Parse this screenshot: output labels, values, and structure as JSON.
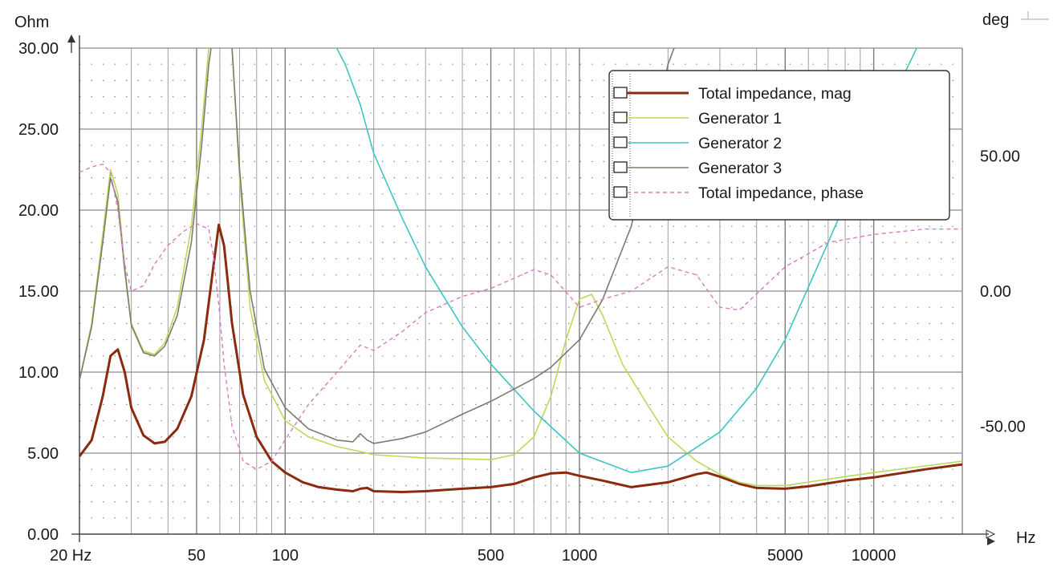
{
  "chart_data": {
    "type": "line",
    "x_scale": "log",
    "xlim": [
      20,
      20000
    ],
    "ylim_left": [
      0,
      30
    ],
    "ylim_right": [
      -90,
      90
    ],
    "left_unit": "Ohm",
    "right_unit": "deg",
    "x_unit": "Hz",
    "grid": true,
    "legend_position": "top-right",
    "y_ticks_left": [
      "0.00",
      "5.00",
      "10.00",
      "15.00",
      "20.00",
      "25.00",
      "30.00"
    ],
    "y_ticks_left_values": [
      0,
      5,
      10,
      15,
      20,
      25,
      30
    ],
    "y_ticks_right": [
      "-50.00",
      "0.00",
      "50.00"
    ],
    "y_ticks_right_values": [
      -50,
      0,
      50
    ],
    "x_ticks": [
      "20 Hz",
      "50",
      "100",
      "500",
      "1000",
      "5000",
      "10000"
    ],
    "x_ticks_values": [
      20,
      50,
      100,
      500,
      1000,
      5000,
      10000
    ],
    "series": [
      {
        "name": "Total impedance, mag",
        "axis": "left",
        "color": "#8b2a0e",
        "width": 3,
        "dash": "",
        "x": [
          20,
          22,
          24,
          25.5,
          27,
          28.5,
          30,
          33,
          36,
          39,
          43,
          48,
          53,
          57,
          59.5,
          62,
          66,
          72,
          80,
          90,
          100,
          115,
          130,
          150,
          170,
          180,
          190,
          200,
          250,
          300,
          400,
          500,
          600,
          700,
          800,
          900,
          1000,
          1200,
          1500,
          2000,
          2500,
          2700,
          3000,
          3500,
          4000,
          5000,
          6000,
          8000,
          10000,
          15000,
          20000
        ],
        "y": [
          4.8,
          5.8,
          8.5,
          11.0,
          11.4,
          10.0,
          7.8,
          6.1,
          5.6,
          5.7,
          6.5,
          8.5,
          12.0,
          16.5,
          19.1,
          17.8,
          13.0,
          8.6,
          6.0,
          4.5,
          3.8,
          3.2,
          2.9,
          2.75,
          2.65,
          2.8,
          2.85,
          2.65,
          2.6,
          2.65,
          2.8,
          2.9,
          3.1,
          3.5,
          3.75,
          3.8,
          3.6,
          3.3,
          2.9,
          3.2,
          3.7,
          3.8,
          3.55,
          3.1,
          2.85,
          2.8,
          2.95,
          3.3,
          3.5,
          4.0,
          4.3
        ]
      },
      {
        "name": "Generator 1",
        "axis": "left",
        "color": "#bcd85a",
        "width": 1.6,
        "dash": "",
        "x": [
          20,
          22,
          24,
          25.5,
          27,
          28.5,
          30,
          33,
          36,
          39,
          43,
          48,
          52,
          55,
          57,
          59,
          62,
          64,
          66,
          70,
          76,
          85,
          100,
          120,
          150,
          180,
          200,
          300,
          500,
          600,
          700,
          800,
          900,
          1000,
          1100,
          1200,
          1400,
          1700,
          2000,
          2500,
          3000,
          3500,
          4000,
          5000,
          10000,
          20000
        ],
        "y": [
          9.5,
          13.0,
          18.5,
          22.5,
          21.0,
          16.5,
          13.0,
          11.3,
          11.1,
          11.8,
          14.0,
          19.0,
          25.0,
          30,
          31,
          31,
          31,
          31,
          30,
          22.0,
          14.0,
          9.5,
          7.0,
          6.0,
          5.4,
          5.1,
          4.9,
          4.7,
          4.6,
          4.9,
          6.0,
          8.5,
          12.0,
          14.5,
          14.8,
          13.5,
          10.5,
          8.0,
          6.0,
          4.5,
          3.7,
          3.2,
          3.0,
          3.0,
          3.8,
          4.5
        ]
      },
      {
        "name": "Generator 2",
        "axis": "left",
        "color": "#3fc4c4",
        "width": 1.6,
        "dash": "",
        "x": [
          140,
          160,
          180,
          200,
          250,
          300,
          400,
          500,
          700,
          1000,
          1500,
          2000,
          3000,
          4000,
          5000,
          7000,
          10000,
          12000,
          14000,
          15000
        ],
        "y": [
          31,
          29,
          26.5,
          23.5,
          19.5,
          16.5,
          12.8,
          10.5,
          7.6,
          5.0,
          3.8,
          4.2,
          6.3,
          9.0,
          12.0,
          18.0,
          24.5,
          27.5,
          30,
          31
        ]
      },
      {
        "name": "Generator 3",
        "axis": "left",
        "color": "#7b7b6e",
        "width": 1.6,
        "dash": "",
        "x": [
          20,
          22,
          24,
          25.5,
          27,
          28.5,
          30,
          33,
          36,
          39,
          43,
          48,
          52,
          55,
          57,
          59,
          62,
          64,
          66,
          70,
          76,
          85,
          100,
          120,
          150,
          170,
          180,
          190,
          200,
          250,
          300,
          400,
          500,
          700,
          800,
          1000,
          1200,
          1500,
          1800,
          2000,
          2200
        ],
        "y": [
          9.5,
          12.8,
          18.0,
          22.0,
          20.5,
          16.3,
          12.9,
          11.2,
          11.0,
          11.6,
          13.5,
          18.0,
          24.0,
          29.0,
          31,
          31,
          31,
          31,
          30,
          22.5,
          15.0,
          10.2,
          7.8,
          6.5,
          5.8,
          5.7,
          6.2,
          5.8,
          5.6,
          5.9,
          6.3,
          7.4,
          8.2,
          9.6,
          10.3,
          12.0,
          14.5,
          19.0,
          25.0,
          29.0,
          31
        ]
      },
      {
        "name": "Total impedance, phase",
        "axis": "right",
        "color": "#d97cc4",
        "width": 1.4,
        "dash": "5,4",
        "x": [
          20,
          22,
          24,
          25.5,
          27,
          28.5,
          30,
          33,
          36,
          40,
          45,
          50,
          55,
          57,
          59.5,
          62,
          66,
          72,
          80,
          90,
          100,
          120,
          150,
          180,
          200,
          250,
          300,
          400,
          500,
          700,
          800,
          1000,
          1200,
          1500,
          2000,
          2500,
          3000,
          3500,
          4000,
          5000,
          7000,
          10000,
          15000,
          20000
        ],
        "y": [
          44,
          46,
          47,
          44,
          30,
          10,
          0,
          2,
          10,
          17,
          22,
          25,
          23,
          13,
          -5,
          -27,
          -50,
          -63,
          -66,
          -63,
          -55,
          -42,
          -30,
          -20,
          -22,
          -15,
          -8,
          -2,
          1,
          8,
          6,
          -6,
          -3,
          0,
          9,
          6,
          -6,
          -7,
          -1,
          9,
          18,
          21,
          23,
          23
        ]
      }
    ]
  }
}
